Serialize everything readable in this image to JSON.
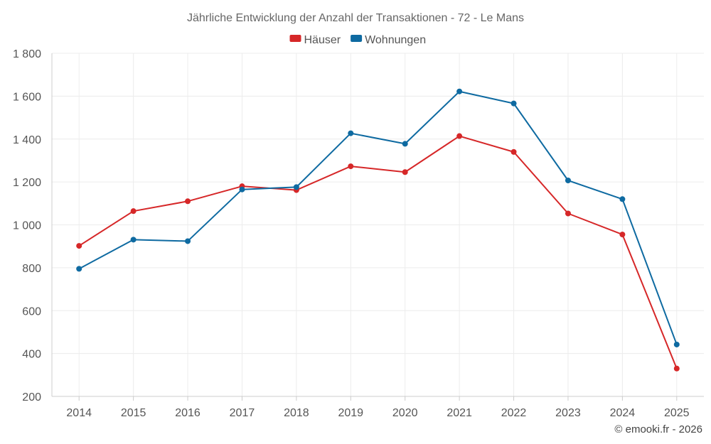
{
  "chart_data": {
    "type": "line",
    "title": "Jährliche Entwicklung der Anzahl der Transaktionen - 72 - Le Mans",
    "categories": [
      "2014",
      "2015",
      "2016",
      "2017",
      "2018",
      "2019",
      "2020",
      "2021",
      "2022",
      "2023",
      "2024",
      "2025"
    ],
    "series": [
      {
        "name": "Häuser",
        "color": "#d62728",
        "values": [
          902,
          1064,
          1110,
          1180,
          1162,
          1273,
          1246,
          1414,
          1340,
          1053,
          955,
          330
        ]
      },
      {
        "name": "Wohnungen",
        "color": "#0e6aa1",
        "values": [
          795,
          931,
          924,
          1165,
          1176,
          1427,
          1378,
          1622,
          1566,
          1207,
          1120,
          442
        ]
      }
    ],
    "ylim": [
      200,
      1800
    ],
    "yticks": [
      200,
      400,
      600,
      800,
      1000,
      1200,
      1400,
      1600,
      1800
    ],
    "ytick_labels": [
      "200",
      "400",
      "600",
      "800",
      "1 000",
      "1 200",
      "1 400",
      "1 600",
      "1 800"
    ],
    "grid": true,
    "legend_position": "top-center",
    "xlabel": "",
    "ylabel": ""
  },
  "credit": "© emooki.fr - 2026"
}
